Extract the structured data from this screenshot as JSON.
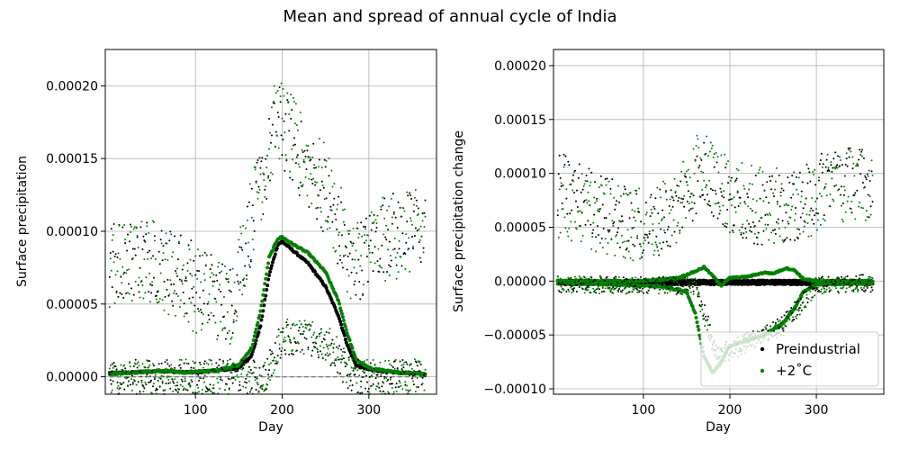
{
  "figure": {
    "suptitle": "Mean and spread of annual cycle of India"
  },
  "chart_data": [
    {
      "type": "scatter",
      "xlabel": "Day",
      "ylabel": "Surface precipitation",
      "xlim": [
        -4,
        378
      ],
      "ylim": [
        -1.2e-05,
        0.000225
      ],
      "xticks": [
        100,
        200,
        300
      ],
      "yticks": [
        0.0,
        5e-05,
        0.0001,
        0.00015,
        0.0002
      ],
      "ytick_labels": [
        "0.00000",
        "0.00005",
        "0.00010",
        "0.00015",
        "0.00020"
      ],
      "grid": true,
      "series": [
        {
          "role": "mean",
          "color": "#000000",
          "knots_x": [
            1,
            30,
            60,
            90,
            120,
            150,
            165,
            175,
            185,
            195,
            200,
            210,
            230,
            250,
            265,
            275,
            285,
            300,
            330,
            365
          ],
          "knots_y": [
            2.5e-06,
            3e-06,
            4e-06,
            3e-06,
            4e-06,
            6e-06,
            1.5e-05,
            3.5e-05,
            7e-05,
            9.1e-05,
            9.3e-05,
            8.8e-05,
            7.8e-05,
            6.2e-05,
            4.2e-05,
            2.2e-05,
            8e-06,
            5e-06,
            3e-06,
            2e-06
          ]
        },
        {
          "role": "mean",
          "color": "#008000",
          "knots_x": [
            1,
            30,
            60,
            90,
            120,
            150,
            165,
            175,
            185,
            195,
            200,
            210,
            230,
            250,
            265,
            275,
            285,
            300,
            330,
            365
          ],
          "knots_y": [
            2e-06,
            3e-06,
            4e-06,
            3e-06,
            4e-06,
            8e-06,
            2e-05,
            4.5e-05,
            8.2e-05,
            9.5e-05,
            9.6e-05,
            9.2e-05,
            8.5e-05,
            7.2e-05,
            5.2e-05,
            3e-05,
            1.2e-05,
            6e-06,
            3e-06,
            2e-06
          ]
        },
        {
          "role": "baseline",
          "color": "#808080",
          "style": "dashed",
          "x": [
            1,
            365
          ],
          "y": [
            0.0,
            0.0
          ]
        },
        {
          "role": "scatter-max",
          "color": "#000000",
          "knots_x": [
            1,
            50,
            100,
            140,
            175,
            195,
            215,
            250,
            280,
            320,
            365
          ],
          "knots_y": [
            8e-05,
            8.5e-05,
            6.5e-05,
            5e-05,
            0.00013,
            0.000175,
            0.000155,
            0.000125,
            7.5e-05,
            0.0001,
            0.0001
          ],
          "spread": 2.8e-05
        },
        {
          "role": "scatter-max",
          "color": "#008000",
          "knots_x": [
            1,
            50,
            100,
            140,
            175,
            195,
            215,
            250,
            280,
            320,
            365
          ],
          "knots_y": [
            7.5e-05,
            8e-05,
            6e-05,
            5e-05,
            0.000135,
            0.00018,
            0.00016,
            0.00013,
            8e-05,
            9.5e-05,
            0.0001
          ],
          "spread": 3e-05
        },
        {
          "role": "scatter-min",
          "color": "#000000",
          "knots_x": [
            1,
            180,
            190,
            200,
            230,
            260,
            270,
            280,
            365
          ],
          "knots_y": [
            0.0,
            0.0,
            1.2e-05,
            2.8e-05,
            2.5e-05,
            1.8e-05,
            8e-06,
            0.0,
            0.0
          ],
          "spread": 1.2e-05
        },
        {
          "role": "scatter-min",
          "color": "#008000",
          "knots_x": [
            1,
            180,
            190,
            200,
            230,
            260,
            270,
            280,
            365
          ],
          "knots_y": [
            0.0,
            0.0,
            1.2e-05,
            2.8e-05,
            2.7e-05,
            2e-05,
            1e-05,
            0.0,
            0.0
          ],
          "spread": 1.2e-05
        }
      ]
    },
    {
      "type": "scatter",
      "xlabel": "Day",
      "ylabel": "Surface precipitation change",
      "xlim": [
        -4,
        378
      ],
      "ylim": [
        -0.000105,
        0.000215
      ],
      "xticks": [
        100,
        200,
        300
      ],
      "yticks": [
        -0.0001,
        -5e-05,
        0.0,
        5e-05,
        0.0001,
        0.00015,
        0.0002
      ],
      "ytick_labels": [
        "−0.00010",
        "−0.00005",
        "0.00000",
        "0.00005",
        "0.00010",
        "0.00015",
        "0.00020"
      ],
      "grid": true,
      "legend": {
        "position": "lower-right",
        "entries": [
          {
            "label": "Preindustrial",
            "color": "#000000"
          },
          {
            "label": "+2˚C",
            "color": "#008000"
          }
        ]
      },
      "series": [
        {
          "role": "mean",
          "color": "#000000",
          "knots_x": [
            1,
            365
          ],
          "knots_y": [
            0.0,
            0.0
          ]
        },
        {
          "role": "mean",
          "color": "#000000",
          "knots_x": [
            1,
            365
          ],
          "knots_y": [
            -2.5e-06,
            -2.5e-06
          ]
        },
        {
          "role": "mean",
          "color": "#008000",
          "knots_x": [
            1,
            100,
            140,
            160,
            170,
            180,
            190,
            200,
            220,
            240,
            250,
            265,
            275,
            285,
            300,
            365
          ],
          "knots_y": [
            0.0,
            0.0,
            3e-06,
            9e-06,
            1.3e-05,
            5e-06,
            -4e-06,
            3e-06,
            4e-06,
            8e-06,
            7e-06,
            1.2e-05,
            1e-05,
            2e-06,
            0.0,
            0.0
          ]
        },
        {
          "role": "mean",
          "color": "#008000",
          "knots_x": [
            1,
            60,
            120,
            150,
            160,
            170,
            180,
            190,
            200,
            220,
            240,
            260,
            275,
            285,
            300,
            365
          ],
          "knots_y": [
            -2e-06,
            -3e-06,
            -5e-06,
            -1e-05,
            -3e-05,
            -7e-05,
            -8.5e-05,
            -7.5e-05,
            -6e-05,
            -5.5e-05,
            -5e-05,
            -4e-05,
            -2.5e-05,
            -1e-05,
            -3e-06,
            -2e-06
          ]
        },
        {
          "role": "scatter-max",
          "color": "#000000",
          "knots_x": [
            1,
            50,
            100,
            130,
            170,
            200,
            240,
            280,
            320,
            365
          ],
          "knots_y": [
            9e-05,
            7e-05,
            5e-05,
            6e-05,
            0.0001,
            7e-05,
            6.5e-05,
            7e-05,
            0.0001,
            9e-05
          ],
          "spread": 3.2e-05
        },
        {
          "role": "scatter-max",
          "color": "#008000",
          "knots_x": [
            1,
            50,
            100,
            130,
            170,
            200,
            240,
            280,
            320,
            365
          ],
          "knots_y": [
            7.5e-05,
            6e-05,
            5e-05,
            6e-05,
            0.00011,
            8e-05,
            7e-05,
            7e-05,
            9e-05,
            9e-05
          ],
          "spread": 3.5e-05
        },
        {
          "role": "scatter-min",
          "color": "#000000",
          "knots_x": [
            1,
            160,
            175,
            185,
            200,
            230,
            260,
            285,
            300,
            365
          ],
          "knots_y": [
            -3e-06,
            -4e-06,
            -4e-05,
            -7e-05,
            -6.2e-05,
            -5.2e-05,
            -4e-05,
            -1.8e-05,
            -3e-06,
            -2e-06
          ],
          "spread": 8e-06
        },
        {
          "role": "scatter-min",
          "color": "#008000",
          "knots_x": [
            1,
            160,
            175,
            185,
            200,
            230,
            260,
            285,
            300,
            365
          ],
          "knots_y": [
            -3e-06,
            -5e-06,
            -4.5e-05,
            -7.5e-05,
            -6.5e-05,
            -5.5e-05,
            -4.3e-05,
            -2e-05,
            -4e-06,
            -2e-06
          ],
          "spread": 8e-06
        }
      ]
    }
  ]
}
